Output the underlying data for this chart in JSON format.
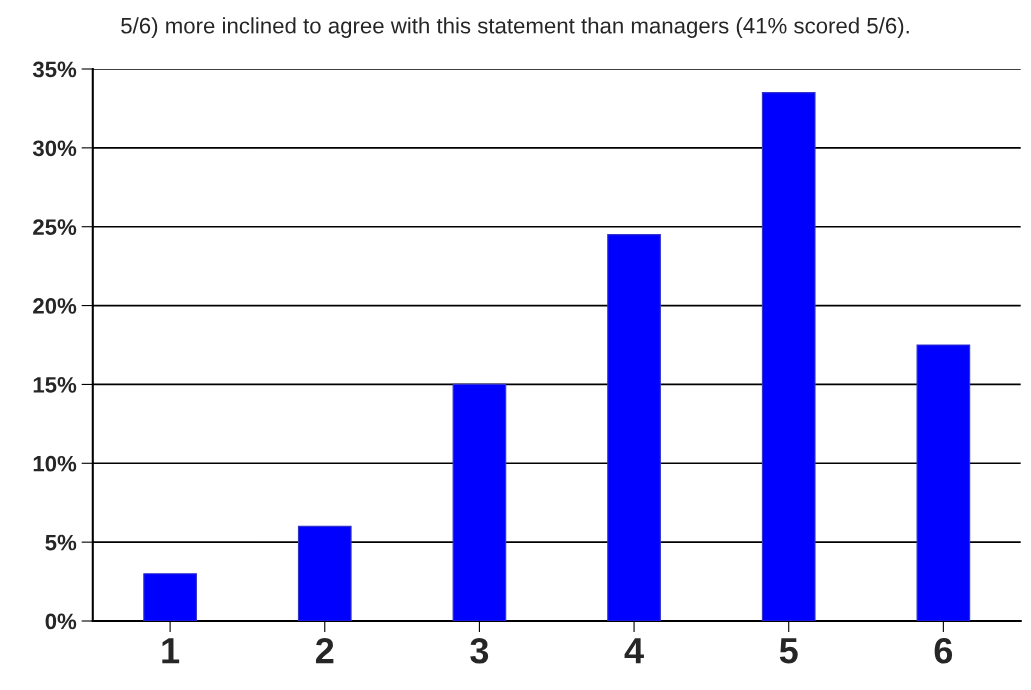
{
  "chart_data": {
    "type": "bar",
    "annotations": [
      "5/6) more inclined to agree with this statement than managers (41% scored 5/6)."
    ],
    "categories": [
      "1",
      "2",
      "3",
      "4",
      "5",
      "6"
    ],
    "values": [
      3,
      6,
      15,
      24.5,
      33.5,
      17.5
    ],
    "color": "#0000ff",
    "ylim": [
      0,
      35
    ],
    "yticks": [
      {
        "value": 0,
        "label": "0%"
      },
      {
        "value": 5,
        "label": "5%"
      },
      {
        "value": 10,
        "label": "10%"
      },
      {
        "value": 15,
        "label": "15%"
      },
      {
        "value": 20,
        "label": "20%"
      },
      {
        "value": 25,
        "label": "25%"
      },
      {
        "value": 30,
        "label": "30%"
      },
      {
        "value": 35,
        "label": "35%"
      }
    ],
    "grid": "y"
  }
}
